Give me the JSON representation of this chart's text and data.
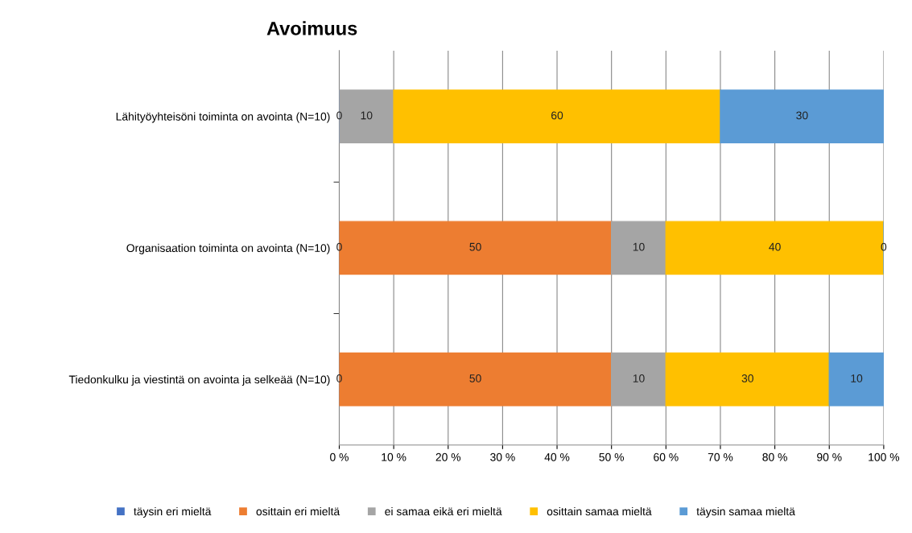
{
  "chart_data": {
    "type": "bar",
    "orientation": "horizontal",
    "stacked": true,
    "title": "Avoimuus",
    "categories": [
      "Lähityöyhteisöni toiminta on avointa (N=10)",
      "Organisaation toiminta on avointa (N=10)",
      "Tiedonkulku ja viestintä on avointa ja selkeää (N=10)"
    ],
    "series": [
      {
        "name": "täysin eri mieltä",
        "color": "#4472c4",
        "values": [
          0,
          0,
          0
        ],
        "value_labels": [
          "0",
          "0",
          "0"
        ]
      },
      {
        "name": "osittain eri mieltä",
        "color": "#ed7d31",
        "values": [
          null,
          50,
          50
        ],
        "value_labels": [
          null,
          "50",
          "50"
        ]
      },
      {
        "name": "ei samaa eikä eri mieltä",
        "color": "#a5a5a5",
        "values": [
          10,
          10,
          10
        ],
        "value_labels": [
          "10",
          "10",
          "10"
        ]
      },
      {
        "name": "osittain samaa mieltä",
        "color": "#ffc000",
        "values": [
          60,
          40,
          30
        ],
        "value_labels": [
          "60",
          "40",
          "30"
        ]
      },
      {
        "name": "täysin samaa mieltä",
        "color": "#5b9bd5",
        "values": [
          30,
          0,
          10
        ],
        "value_labels": [
          "30",
          "0",
          "10"
        ]
      }
    ],
    "xlim": [
      0,
      100
    ],
    "xticks": [
      {
        "value": 0,
        "label": "0 %"
      },
      {
        "value": 10,
        "label": "10 %"
      },
      {
        "value": 20,
        "label": "20 %"
      },
      {
        "value": 30,
        "label": "30 %"
      },
      {
        "value": 40,
        "label": "40 %"
      },
      {
        "value": 50,
        "label": "50 %"
      },
      {
        "value": 60,
        "label": "60 %"
      },
      {
        "value": 70,
        "label": "70 %"
      },
      {
        "value": 80,
        "label": "80 %"
      },
      {
        "value": 90,
        "label": "90 %"
      },
      {
        "value": 100,
        "label": "100 %"
      }
    ],
    "grid": "x",
    "legend": "bottom"
  }
}
